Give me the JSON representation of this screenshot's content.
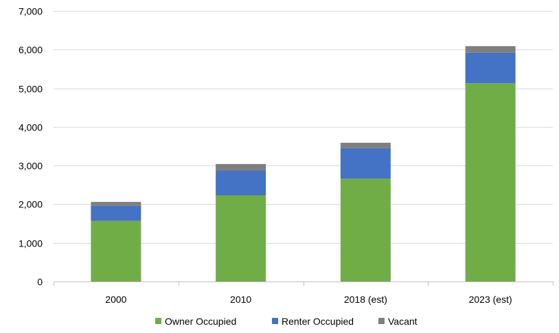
{
  "chart_data": {
    "type": "bar",
    "stacked": true,
    "categories": [
      "2000",
      "2010",
      "2018 (est)",
      "2023 (est)"
    ],
    "series": [
      {
        "name": "Owner Occupied",
        "color": "#70ad47",
        "values": [
          1570,
          2230,
          2660,
          5130
        ]
      },
      {
        "name": "Renter Occupied",
        "color": "#4472c4",
        "values": [
          390,
          640,
          790,
          790
        ]
      },
      {
        "name": "Vacant",
        "color": "#7f7f7f",
        "values": [
          100,
          170,
          140,
          170
        ]
      }
    ],
    "ylim": [
      0,
      7000
    ],
    "yticks": [
      "0",
      "1,000",
      "2,000",
      "3,000",
      "4,000",
      "5,000",
      "6,000",
      "7,000"
    ],
    "ytick_values": [
      0,
      1000,
      2000,
      3000,
      4000,
      5000,
      6000,
      7000
    ],
    "grid": true,
    "legend": "bottom",
    "title": "",
    "xlabel": "",
    "ylabel": ""
  }
}
